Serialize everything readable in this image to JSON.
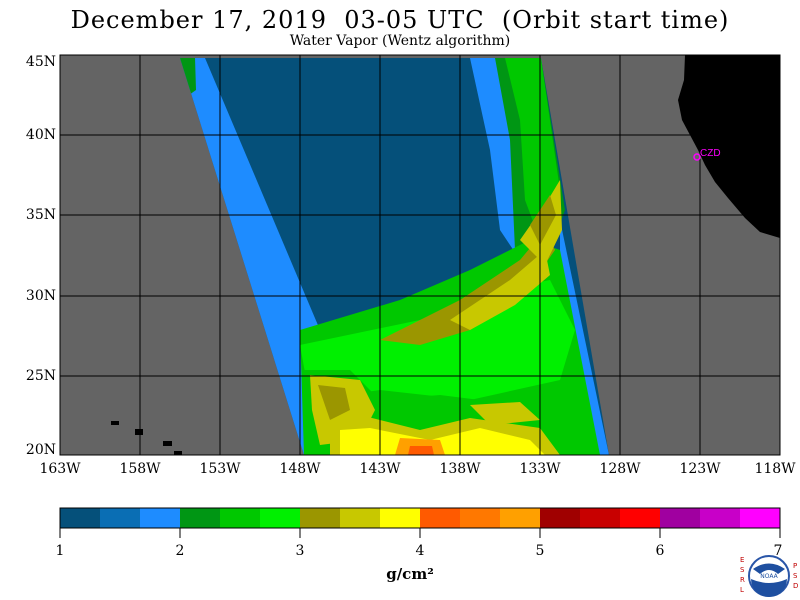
{
  "title": "December 17, 2019  03-05 UTC  (Orbit start time)",
  "subtitle": "Water Vapor (Wentz algorithm)",
  "lat_labels": [
    "45N",
    "40N",
    "35N",
    "30N",
    "25N",
    "20N"
  ],
  "lon_labels": [
    "163W",
    "158W",
    "153W",
    "148W",
    "143W",
    "138W",
    "133W",
    "128W",
    "123W",
    "118W"
  ],
  "station_label": "CZD",
  "colorbar": {
    "ticks": [
      "1",
      "2",
      "3",
      "4",
      "5",
      "6",
      "7"
    ],
    "units": "g/cm²",
    "colors": [
      "#05507a",
      "#0a6eb4",
      "#1e8cff",
      "#009614",
      "#00c800",
      "#00f000",
      "#9b9600",
      "#c8c800",
      "#ffff00",
      "#ff5a00",
      "#ff7800",
      "#ffa000",
      "#a00000",
      "#c80000",
      "#ff0000",
      "#a000a0",
      "#c800c8",
      "#ff00ff"
    ]
  },
  "colors": {
    "no_data": "#646464",
    "land": "#000000",
    "grid": "#000000",
    "station": "#ff00ff"
  },
  "logo": {
    "left_letters": "ESRL",
    "right_letters": "PSD",
    "center_text": "NOAA"
  }
}
